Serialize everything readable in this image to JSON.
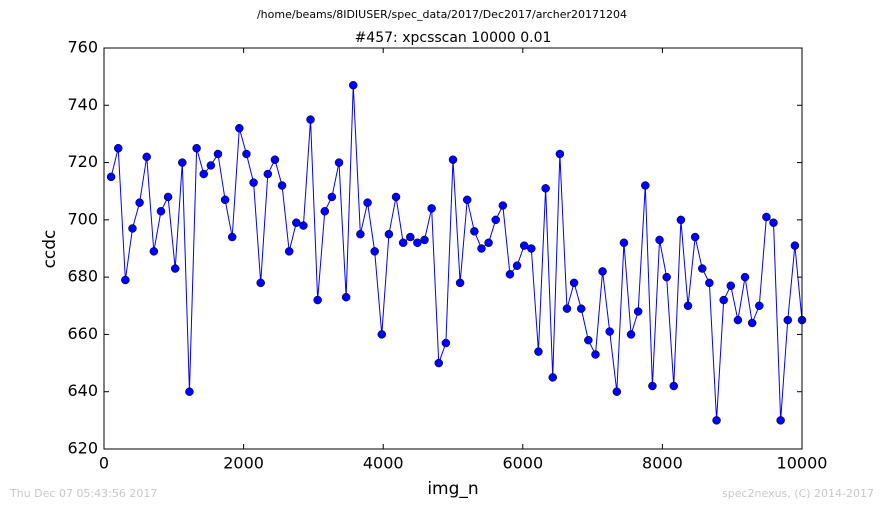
{
  "chart_data": {
    "type": "line",
    "suptitle": "/home/beams/8IDIUSER/spec_data/2017/Dec2017/archer20171204",
    "title": "#457: xpcsscan 10000 0.01",
    "xlabel": "img_n",
    "ylabel": "ccdc",
    "footer_left": "Thu Dec 07 05:43:56 2017",
    "footer_right": "spec2nexus, (C) 2014-2017",
    "xlim": [
      0,
      10000
    ],
    "xticks": [
      0,
      2000,
      4000,
      6000,
      8000,
      10000
    ],
    "ylim": [
      620,
      760
    ],
    "yticks": [
      620,
      640,
      660,
      680,
      700,
      720,
      740,
      760
    ],
    "x": [
      102,
      204,
      306,
      408,
      510,
      612,
      714,
      816,
      918,
      1020,
      1122,
      1224,
      1327,
      1429,
      1531,
      1633,
      1735,
      1837,
      1939,
      2041,
      2143,
      2245,
      2347,
      2449,
      2551,
      2653,
      2755,
      2857,
      2959,
      3061,
      3163,
      3265,
      3367,
      3469,
      3571,
      3673,
      3776,
      3878,
      3980,
      4082,
      4184,
      4286,
      4388,
      4490,
      4592,
      4694,
      4796,
      4898,
      5000,
      5102,
      5204,
      5306,
      5408,
      5510,
      5612,
      5714,
      5816,
      5918,
      6020,
      6122,
      6224,
      6327,
      6429,
      6531,
      6633,
      6735,
      6837,
      6939,
      7041,
      7143,
      7245,
      7347,
      7449,
      7551,
      7653,
      7755,
      7857,
      7959,
      8061,
      8163,
      8265,
      8367,
      8469,
      8571,
      8673,
      8776,
      8878,
      8980,
      9082,
      9184,
      9286,
      9388,
      9490,
      9592,
      9694,
      9796,
      9898,
      10000
    ],
    "series": [
      {
        "color": "#0000ff",
        "values": [
          715,
          725,
          679,
          697,
          706,
          722,
          689,
          703,
          708,
          683,
          720,
          640,
          725,
          716,
          719,
          723,
          707,
          694,
          732,
          723,
          713,
          678,
          716,
          721,
          712,
          689,
          699,
          698,
          735,
          672,
          703,
          708,
          720,
          673,
          747,
          695,
          706,
          689,
          660,
          695,
          708,
          692,
          694,
          692,
          693,
          704,
          650,
          657,
          721,
          678,
          707,
          696,
          690,
          692,
          700,
          705,
          681,
          684,
          691,
          690,
          654,
          711,
          645,
          723,
          669,
          678,
          669,
          658,
          653,
          682,
          661,
          640,
          692,
          660,
          668,
          712,
          642,
          693,
          680,
          642,
          700,
          670,
          694,
          683,
          678,
          630,
          672,
          677,
          665,
          680,
          664,
          670,
          701,
          699,
          630,
          665,
          691,
          665
        ]
      }
    ]
  }
}
